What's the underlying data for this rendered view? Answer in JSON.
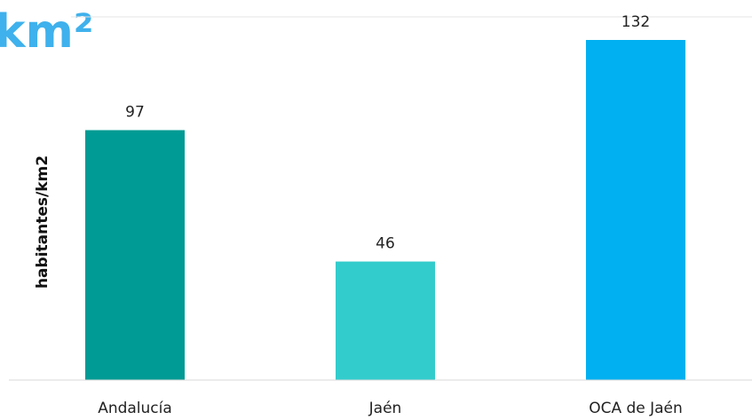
{
  "chart_data": {
    "type": "bar",
    "title": "km²",
    "xlabel": "",
    "ylabel": "habitantes/km2",
    "categories": [
      "Andalucía",
      "Jaén",
      "OCA de Jaén"
    ],
    "values": [
      97,
      46,
      132
    ],
    "data_labels": [
      "97",
      "46",
      "132"
    ],
    "colors": [
      "#009b94",
      "#33cccc",
      "#00b0f0"
    ],
    "ylim": [
      0,
      140
    ],
    "grid": true,
    "legend": "none"
  }
}
